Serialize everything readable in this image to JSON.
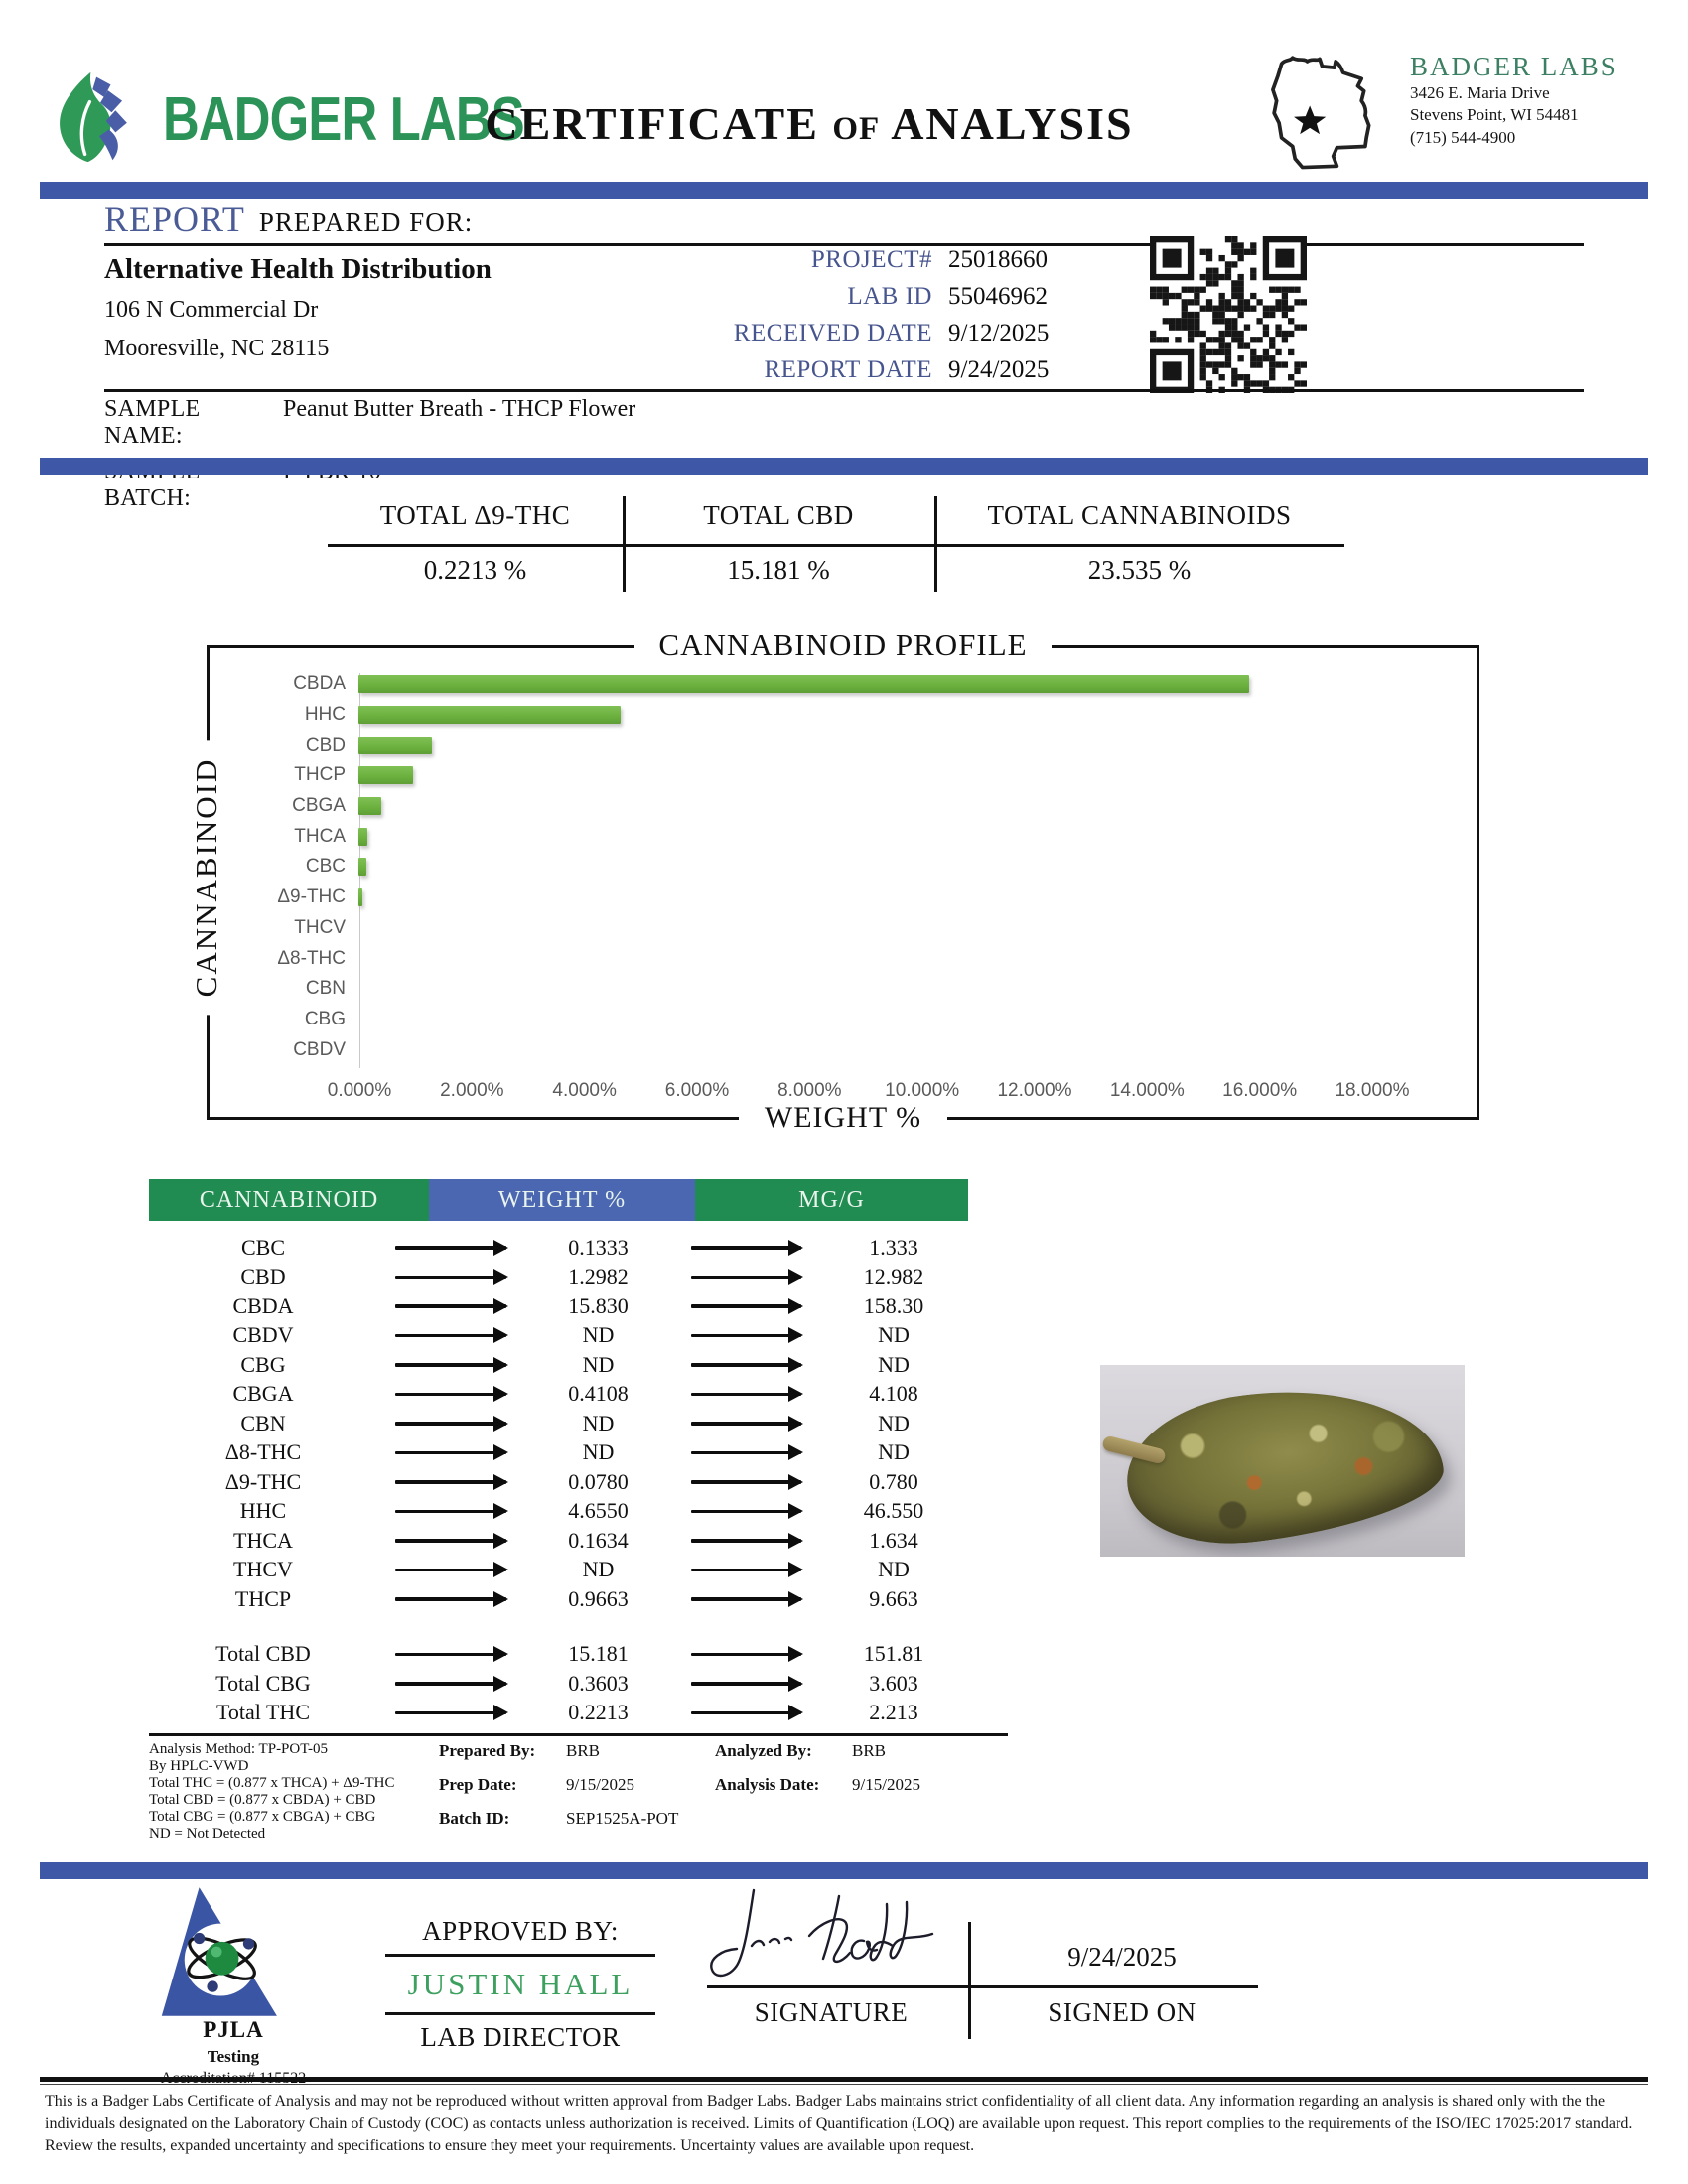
{
  "colors": {
    "divider_blue": "#3f57a7",
    "heading_blue": "#4a5b96",
    "meta_label_blue": "#47558e",
    "table_header_green": "#218c52",
    "table_header_blue": "#4b67b2",
    "bar_green": "#6fb244",
    "brand_green": "#2b9357",
    "approver_green": "#3da05f"
  },
  "brand": {
    "logo_text": "BADGER LABS"
  },
  "title": {
    "part1": "CERTIFICATE",
    "of": "OF",
    "part2": "ANALYSIS"
  },
  "lab": {
    "name": "BADGER LABS",
    "address1": "3426 E. Maria Drive",
    "address2": "Stevens Point, WI 54481",
    "phone": "(715) 544-4900"
  },
  "report": {
    "heading_primary": "REPORT",
    "heading_secondary": "PREPARED FOR:",
    "client_name": "Alternative Health Distribution",
    "client_address1": "106 N Commercial Dr",
    "client_address2": "Mooresville, NC 28115",
    "meta": [
      {
        "label": "PROJECT#",
        "value": "25018660"
      },
      {
        "label": "LAB ID",
        "value": "55046962"
      },
      {
        "label": "RECEIVED DATE",
        "value": "9/12/2025"
      },
      {
        "label": "REPORT DATE",
        "value": "9/24/2025"
      }
    ],
    "samples": [
      {
        "label": "SAMPLE NAME:",
        "value": "Peanut Butter Breath - THCP Flower"
      },
      {
        "label": "SAMPLE BATCH:",
        "value": "P-PBR-10"
      }
    ]
  },
  "totals": [
    {
      "label": "TOTAL Δ9-THC",
      "value": "0.2213 %"
    },
    {
      "label": "TOTAL CBD",
      "value": "15.181 %"
    },
    {
      "label": "TOTAL CANNABINOIDS",
      "value": "23.535 %"
    }
  ],
  "chart_data": {
    "type": "bar",
    "orientation": "horizontal",
    "title": "CANNABINOID PROFILE",
    "xlabel": "WEIGHT %",
    "ylabel": "CANNABINOID",
    "categories": [
      "CBDA",
      "HHC",
      "CBD",
      "THCP",
      "CBGA",
      "THCA",
      "CBC",
      "Δ9-THC",
      "THCV",
      "Δ8-THC",
      "CBN",
      "CBG",
      "CBDV"
    ],
    "values": [
      15.83,
      4.655,
      1.2982,
      0.9663,
      0.4108,
      0.1634,
      0.1333,
      0.078,
      0,
      0,
      0,
      0,
      0
    ],
    "xlim": [
      0,
      18
    ],
    "x_ticks": [
      "0.000%",
      "2.000%",
      "4.000%",
      "6.000%",
      "8.000%",
      "10.000%",
      "12.000%",
      "14.000%",
      "16.000%",
      "18.000%"
    ],
    "bar_color": "#6fb244",
    "grid": false,
    "legend": false
  },
  "results_table": {
    "headers": [
      "CANNABINOID",
      "WEIGHT %",
      "MG/G"
    ],
    "rows": [
      [
        "CBC",
        "0.1333",
        "1.333"
      ],
      [
        "CBD",
        "1.2982",
        "12.982"
      ],
      [
        "CBDA",
        "15.830",
        "158.30"
      ],
      [
        "CBDV",
        "ND",
        "ND"
      ],
      [
        "CBG",
        "ND",
        "ND"
      ],
      [
        "CBGA",
        "0.4108",
        "4.108"
      ],
      [
        "CBN",
        "ND",
        "ND"
      ],
      [
        "Δ8-THC",
        "ND",
        "ND"
      ],
      [
        "Δ9-THC",
        "0.0780",
        "0.780"
      ],
      [
        "HHC",
        "4.6550",
        "46.550"
      ],
      [
        "THCA",
        "0.1634",
        "1.634"
      ],
      [
        "THCV",
        "ND",
        "ND"
      ],
      [
        "THCP",
        "0.9663",
        "9.663"
      ]
    ],
    "total_rows": [
      [
        "Total CBD",
        "15.181",
        "151.81"
      ],
      [
        "Total CBG",
        "0.3603",
        "3.603"
      ],
      [
        "Total THC",
        "0.2213",
        "2.213"
      ]
    ]
  },
  "footnotes": {
    "left": [
      "Analysis Method: TP-POT-05",
      "By HPLC-VWD",
      "Total THC = (0.877 x  THCA) + Δ9-THC",
      "Total CBD = (0.877 x  CBDA) + CBD",
      "Total CBG = (0.877 x  CBGA) + CBG",
      "ND = Not Detected"
    ],
    "middle": [
      {
        "label": "Prepared By:",
        "value": "BRB"
      },
      {
        "label": "Prep Date:",
        "value": "9/15/2025"
      },
      {
        "label": "Batch ID:",
        "value": "SEP1525A-POT"
      }
    ],
    "right": [
      {
        "label": "Analyzed By:",
        "value": "BRB"
      },
      {
        "label": "Analysis Date:",
        "value": "9/15/2025"
      }
    ]
  },
  "approval": {
    "approved_by_label": "APPROVED BY:",
    "approver_name": "JUSTIN HALL",
    "approver_title": "LAB DIRECTOR",
    "signature_label": "SIGNATURE",
    "signed_on_label": "SIGNED ON",
    "signed_on_date": "9/24/2025"
  },
  "accreditation": {
    "org": "PJLA",
    "line2": "Testing",
    "line3": "Accreditation# 115522"
  },
  "disclaimer": "This is a Badger Labs Certificate of Analysis and may not be reproduced without written approval from Badger Labs. Badger Labs maintains strict confidentiality of all client data. Any information regarding an analysis is shared only with the the individuals designated on the Laboratory Chain of Custody (COC) as contacts unless authorization is received. Limits of Quantification (LOQ) are available upon request. This report complies to the requirements of the ISO/IEC 17025:2017 standard. Review the results, expanded uncertainty and specifications to ensure they meet your requirements. Uncertainty values are available upon request."
}
